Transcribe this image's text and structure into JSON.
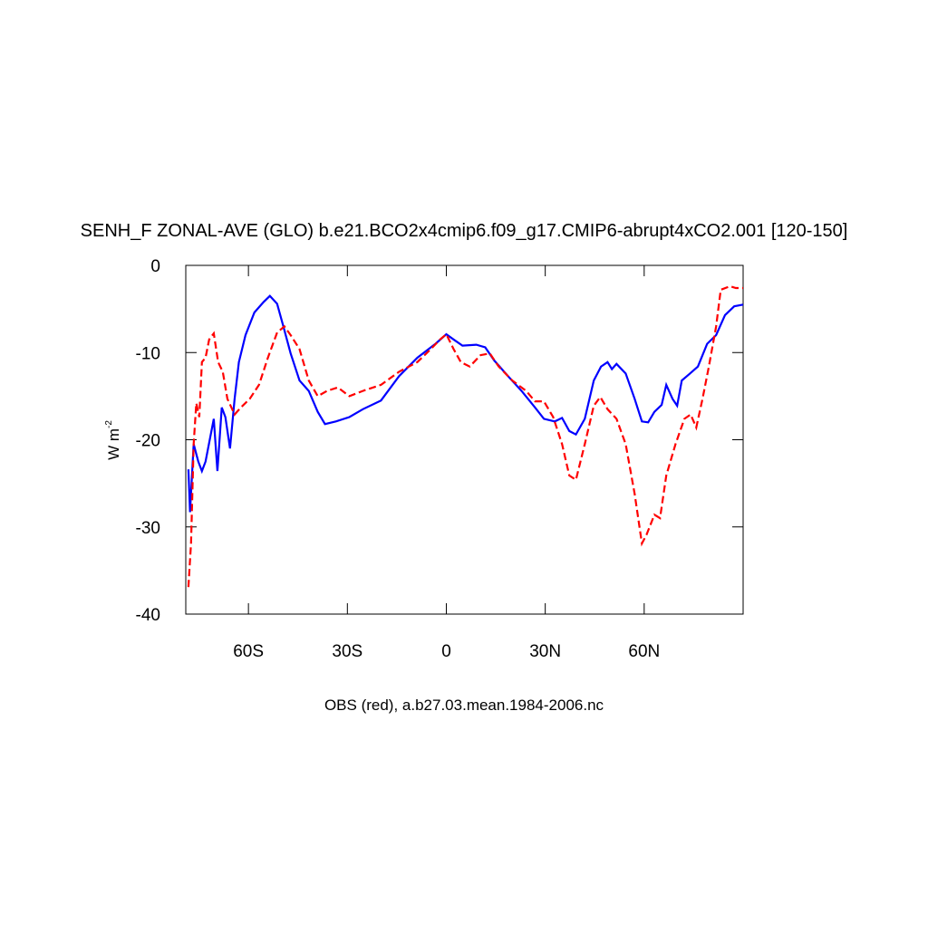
{
  "chart_data": {
    "type": "line",
    "title": "SENH_F ZONAL-AVE (GLO) b.e21.BCO2x4cmip6.f09_g17.CMIP6-abrupt4xCO2.001 [120-150]",
    "subtitle": "OBS (red), a.b27.03.mean.1984-2006.nc",
    "ylabel": "W m",
    "ylabel_superscript": "-2",
    "xlim": [
      -79,
      90
    ],
    "ylim": [
      -40,
      0
    ],
    "xticks": [
      {
        "value": -60,
        "label": "60S"
      },
      {
        "value": -30,
        "label": "30S"
      },
      0,
      {
        "value": 30,
        "label": "30N"
      },
      {
        "value": 60,
        "label": "60N"
      }
    ],
    "yticks": [
      0,
      -10,
      -20,
      -30,
      -40
    ],
    "series": [
      {
        "color": "#0000ff",
        "dash": false,
        "x": [
          -78.2,
          -77.7,
          -76.6,
          -75.2,
          -74.1,
          -73,
          -70.5,
          -69.4,
          -68.1,
          -67,
          -65.6,
          -64.2,
          -62.9,
          -60.9,
          -58.2,
          -55.4,
          -53.5,
          -51.3,
          -49.4,
          -47.2,
          -44.5,
          -41.7,
          -39,
          -36.8,
          -33.5,
          -29.4,
          -25.3,
          -19.8,
          -14.3,
          -8.8,
          -3.3,
          0,
          2.2,
          4.9,
          9.1,
          11.8,
          14.5,
          18.7,
          22.8,
          26.9,
          29.6,
          32.9,
          35.1,
          37.3,
          39.3,
          42,
          44.7,
          46.9,
          48.9,
          50.2,
          51.6,
          54.4,
          57.1,
          59.3,
          61.2,
          63.1,
          65.3,
          66.7,
          68.6,
          70,
          71.4,
          73.6,
          76.3,
          79.1,
          81.8,
          84.5,
          87.3,
          90
        ],
        "values": [
          -23.4,
          -28.3,
          -20.5,
          -22.5,
          -23.6,
          -22.5,
          -17.6,
          -23.6,
          -16.3,
          -17.4,
          -21.0,
          -15.3,
          -11.1,
          -8.0,
          -5.4,
          -4.2,
          -3.5,
          -4.4,
          -7.0,
          -10.1,
          -13.2,
          -14.4,
          -16.8,
          -18.2,
          -17.9,
          -17.4,
          -16.5,
          -15.5,
          -12.7,
          -10.6,
          -9.0,
          -7.9,
          -8.5,
          -9.2,
          -9.1,
          -9.4,
          -10.9,
          -12.7,
          -14.4,
          -16.3,
          -17.6,
          -17.9,
          -17.5,
          -19.0,
          -19.4,
          -17.6,
          -13.2,
          -11.6,
          -11.1,
          -11.9,
          -11.3,
          -12.4,
          -15.3,
          -17.9,
          -18.0,
          -16.8,
          -16.0,
          -13.7,
          -15.3,
          -16.1,
          -13.2,
          -12.5,
          -11.6,
          -9.0,
          -8.0,
          -5.7,
          -4.7,
          -4.5
        ]
      },
      {
        "color": "#ff0000",
        "dash": true,
        "x": [
          -78.2,
          -77.4,
          -76.6,
          -75.8,
          -74.9,
          -74.1,
          -73,
          -71.9,
          -70.5,
          -69.2,
          -67.8,
          -66.4,
          -64.2,
          -62.3,
          -59.6,
          -56.8,
          -54.1,
          -51.3,
          -49.1,
          -47.2,
          -44.5,
          -41.7,
          -39,
          -36.2,
          -32.9,
          -29.4,
          -25.3,
          -19.8,
          -14.3,
          -8.8,
          -4.7,
          -1.9,
          0,
          2.2,
          4.4,
          7.1,
          10.4,
          13.2,
          15.9,
          20,
          24.2,
          26.9,
          29.6,
          32.4,
          35.1,
          37.3,
          39.3,
          42,
          44.7,
          46.7,
          48.9,
          51.6,
          54.4,
          57.1,
          59.3,
          60.7,
          63.1,
          64.8,
          66.7,
          69.5,
          72.2,
          74.1,
          75.8,
          77.7,
          79.6,
          81.8,
          83.2,
          86,
          87.8,
          90
        ],
        "values": [
          -36.9,
          -31.9,
          -20.5,
          -15.8,
          -17.4,
          -11.1,
          -10.6,
          -8.5,
          -7.8,
          -11.1,
          -12.2,
          -15.3,
          -17.1,
          -16.3,
          -15.3,
          -13.7,
          -10.6,
          -7.7,
          -7.0,
          -8.0,
          -9.6,
          -13.2,
          -15.0,
          -14.4,
          -14.0,
          -15.0,
          -14.4,
          -13.7,
          -12.2,
          -11.1,
          -9.6,
          -8.5,
          -7.9,
          -9.6,
          -11.1,
          -11.6,
          -10.3,
          -10.1,
          -11.6,
          -13.2,
          -14.4,
          -15.6,
          -15.6,
          -17.4,
          -20.5,
          -24.1,
          -24.6,
          -20.5,
          -16.1,
          -15.1,
          -16.5,
          -17.6,
          -20.5,
          -26.2,
          -31.9,
          -30.9,
          -28.6,
          -29.0,
          -24.1,
          -20.5,
          -17.6,
          -17.1,
          -18.6,
          -15.3,
          -11.6,
          -7.0,
          -2.8,
          -2.4,
          -2.6,
          -2.6
        ]
      }
    ]
  }
}
